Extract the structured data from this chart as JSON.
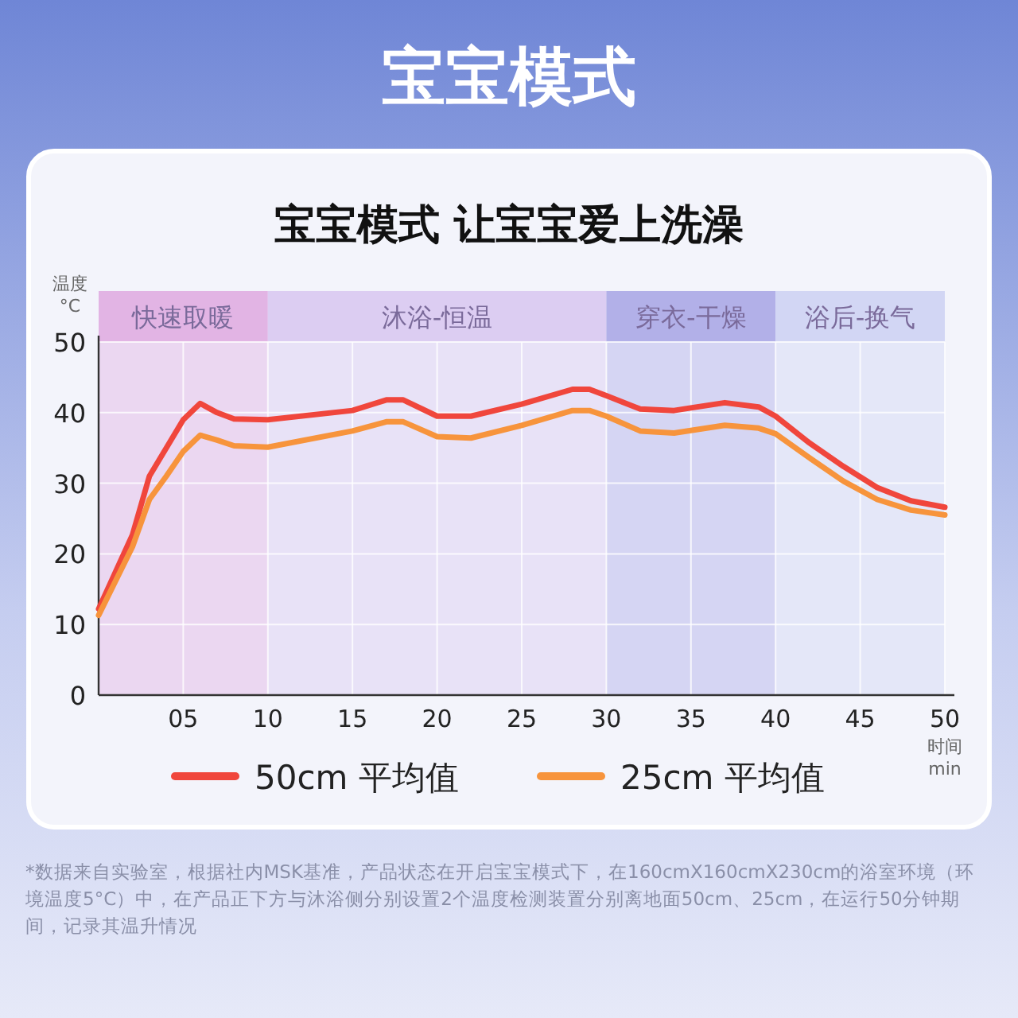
{
  "chart_data": {
    "type": "line",
    "title": "宝宝模式",
    "subtitle": "宝宝模式 让宝宝爱上洗澡",
    "xlabel": "时间 min",
    "ylabel": "温度 °C",
    "x": [
      0,
      2,
      3,
      4,
      5,
      6,
      7,
      8,
      10,
      15,
      17,
      18,
      20,
      22,
      25,
      28,
      29,
      30,
      32,
      34,
      37,
      39,
      40,
      42,
      44,
      46,
      48,
      50
    ],
    "series": [
      {
        "name": "50cm 平均值",
        "color": "#f0463c",
        "values": [
          12.2,
          22.7,
          31,
          35,
          39,
          41.3,
          40,
          39.1,
          39,
          40.3,
          41.8,
          41.8,
          39.5,
          39.5,
          41.2,
          43.3,
          43.3,
          42.4,
          40.5,
          40.3,
          41.4,
          40.8,
          39.5,
          35.7,
          32.4,
          29.4,
          27.5,
          26.6
        ]
      },
      {
        "name": "25cm 平均值",
        "color": "#f7943c",
        "values": [
          11.3,
          21,
          27.7,
          31,
          34.5,
          36.8,
          36.1,
          35.3,
          35.1,
          37.4,
          38.7,
          38.7,
          36.6,
          36.4,
          38.2,
          40.3,
          40.3,
          39.5,
          37.4,
          37.1,
          38.2,
          37.8,
          37,
          33.6,
          30.3,
          27.7,
          26.2,
          25.5
        ]
      }
    ],
    "xlim": [
      0,
      50
    ],
    "ylim": [
      0,
      50
    ],
    "xticks": [
      {
        "value": 5,
        "label": "05"
      },
      10,
      15,
      20,
      25,
      30,
      35,
      40,
      45,
      50
    ],
    "yticks": [
      0,
      10,
      20,
      30,
      40,
      50
    ],
    "bands": [
      {
        "axis": "x",
        "from": 0,
        "to": 10,
        "label": "快速取暖",
        "color": "#e2b4e4"
      },
      {
        "axis": "x",
        "from": 10,
        "to": 30,
        "label": "沐浴-恒温",
        "color": "#dccdf2"
      },
      {
        "axis": "x",
        "from": 30,
        "to": 40,
        "label": "穿衣-干燥",
        "color": "#b2b0e8"
      },
      {
        "axis": "x",
        "from": 40,
        "to": 50,
        "label": "浴后-换气",
        "color": "#d2d6f4"
      }
    ],
    "grid": true,
    "legend": "bottom",
    "line_style": "solid",
    "marker": "none",
    "annotations": [
      "*数据来自实验室，根据社内MSK基准，产品状态在开启宝宝模式下，在160cmX160cmX230cm的浴室环境（环境温度5°C）中，在产品正下方与沐浴侧分别设置2个温度检测装置分别离地面50cm、25cm，在运行50分钟期间，记录其温升情况"
    ]
  }
}
